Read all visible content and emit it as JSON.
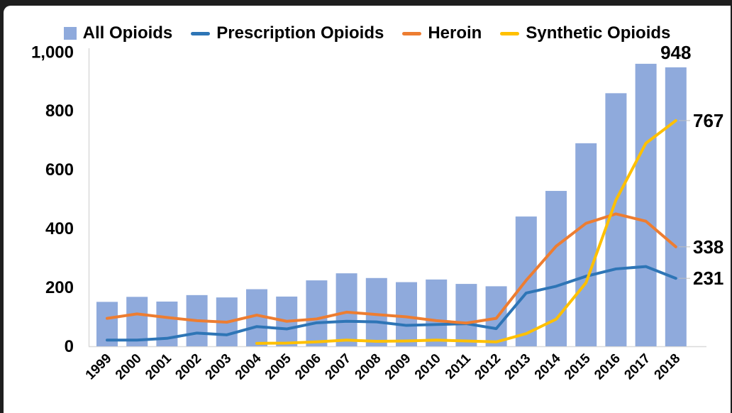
{
  "colors": {
    "frame": "#1e1e1e",
    "background": "#ffffff",
    "axis_line": "#d9d9d9",
    "text": "#000000",
    "bar_fill": "#8FAADC",
    "prescription_line": "#2E75B6",
    "heroin_line": "#ED7D31",
    "synthetic_line": "#FFC000"
  },
  "legend": {
    "items": [
      {
        "label": "All Opioids",
        "marker": "square",
        "color": "#8FAADC"
      },
      {
        "label": "Prescription Opioids",
        "marker": "line",
        "color": "#2E75B6"
      },
      {
        "label": "Heroin",
        "marker": "line",
        "color": "#ED7D31"
      },
      {
        "label": "Synthetic Opioids",
        "marker": "line",
        "color": "#FFC000"
      }
    ]
  },
  "chart_data": {
    "type": "bar",
    "subtype": "combo-bar-and-lines",
    "title": "",
    "xlabel": "",
    "ylabel": "",
    "grid": false,
    "legend_position": "top",
    "ylim": [
      0,
      1000
    ],
    "axis_color": "#d9d9d9",
    "categories": [
      "1999",
      "2000",
      "2001",
      "2002",
      "2003",
      "2004",
      "2005",
      "2006",
      "2007",
      "2008",
      "2009",
      "2010",
      "2011",
      "2012",
      "2013",
      "2014",
      "2015",
      "2016",
      "2017",
      "2018"
    ],
    "y_ticks": [
      {
        "label": "1,000",
        "value": 1000
      },
      {
        "label": "800",
        "value": 800
      },
      {
        "label": "600",
        "value": 600
      },
      {
        "label": "400",
        "value": 400
      },
      {
        "label": "200",
        "value": 200
      },
      {
        "label": "0",
        "value": 0
      }
    ],
    "series": [
      {
        "name": "All Opioids",
        "type": "bar",
        "color": "#8FAADC",
        "values": [
          151,
          168,
          152,
          174,
          166,
          194,
          169,
          224,
          248,
          232,
          218,
          227,
          212,
          204,
          441,
          528,
          690,
          860,
          960,
          948
        ]
      },
      {
        "name": "Prescription Opioids",
        "type": "line",
        "color": "#2E75B6",
        "values": [
          21,
          21,
          27,
          45,
          39,
          67,
          59,
          80,
          85,
          83,
          71,
          74,
          77,
          60,
          181,
          204,
          238,
          263,
          271,
          231
        ]
      },
      {
        "name": "Heroin",
        "type": "line",
        "color": "#ED7D31",
        "values": [
          95,
          110,
          98,
          87,
          82,
          106,
          85,
          93,
          116,
          108,
          100,
          87,
          79,
          95,
          224,
          340,
          418,
          450,
          425,
          338
        ]
      },
      {
        "name": "Synthetic Opioids",
        "type": "line",
        "color": "#FFC000",
        "values": [
          null,
          null,
          null,
          null,
          null,
          10,
          11,
          15,
          21,
          17,
          18,
          21,
          18,
          15,
          43,
          92,
          216,
          497,
          690,
          767
        ]
      }
    ],
    "annotations": [
      {
        "text": "948",
        "value": 948,
        "year": "2018",
        "placement": "above-bar"
      },
      {
        "text": "767",
        "value": 767,
        "year": "2018",
        "placement": "right"
      },
      {
        "text": "338",
        "value": 338,
        "year": "2018",
        "placement": "right"
      },
      {
        "text": "231",
        "value": 231,
        "year": "2018",
        "placement": "right"
      }
    ]
  }
}
